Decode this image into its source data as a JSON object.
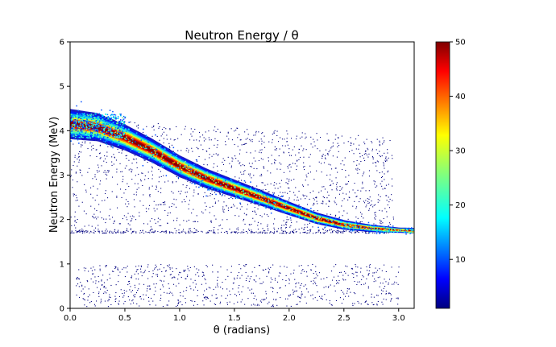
{
  "chart_data": {
    "type": "heatmap",
    "title": "Neutron Energy / θ",
    "xlabel": "θ (radians)",
    "ylabel": "Neutron Energy (MeV)",
    "xlim": [
      0,
      3.14159
    ],
    "ylim": [
      0,
      6
    ],
    "x_ticks": [
      "0.0",
      "0.5",
      "1.0",
      "1.5",
      "2.0",
      "2.5",
      "3.0"
    ],
    "x_tick_values": [
      0.0,
      0.5,
      1.0,
      1.5,
      2.0,
      2.5,
      3.0
    ],
    "y_ticks": [
      "0",
      "1",
      "2",
      "3",
      "4",
      "5",
      "6"
    ],
    "y_tick_values": [
      0,
      1,
      2,
      3,
      4,
      5,
      6
    ],
    "grid": false,
    "colormap": "jet",
    "colorbar": {
      "range": [
        1,
        50
      ],
      "ticks": [
        "10",
        "20",
        "30",
        "40",
        "50"
      ],
      "tick_values": [
        10,
        20,
        30,
        40,
        50
      ]
    },
    "main_band": {
      "description_points_theta": [
        0.0,
        0.25,
        0.5,
        0.75,
        1.0,
        1.25,
        1.5,
        1.75,
        2.0,
        2.25,
        2.5,
        2.75,
        3.0,
        3.14
      ],
      "energy_MeV": [
        4.15,
        4.08,
        3.85,
        3.55,
        3.2,
        2.92,
        2.7,
        2.48,
        2.25,
        2.03,
        1.88,
        1.8,
        1.76,
        1.75
      ],
      "peak_counts": 50
    },
    "scatter_regions": [
      {
        "theta_range": [
          0.0,
          2.95
        ],
        "energy_range": [
          1.7,
          4.35
        ],
        "density": "sparse"
      },
      {
        "theta_range": [
          0.05,
          3.0
        ],
        "energy_range": [
          0.05,
          1.0
        ],
        "density": "sparse"
      }
    ],
    "colors": {
      "low": "#00007f",
      "high": "#7f0000"
    }
  }
}
